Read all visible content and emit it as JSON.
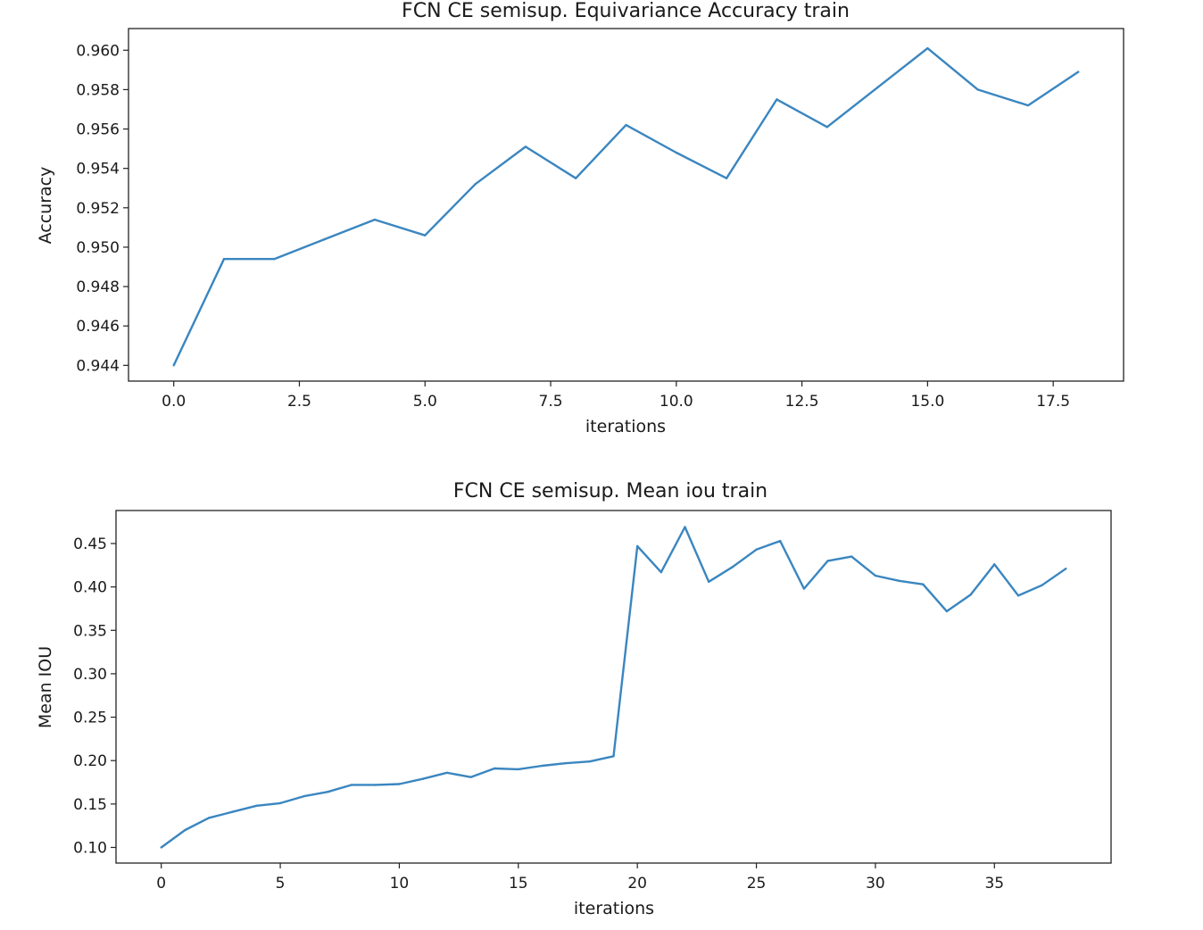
{
  "chart_data": [
    {
      "type": "line",
      "title": "FCN CE semisup. Equivariance Accuracy train",
      "xlabel": "iterations",
      "ylabel": "Accuracy",
      "xlim": [
        -0.9,
        18.9
      ],
      "ylim": [
        0.9432,
        0.9611
      ],
      "xticks": [
        0.0,
        2.5,
        5.0,
        7.5,
        10.0,
        12.5,
        15.0,
        17.5
      ],
      "xtick_labels": [
        "0.0",
        "2.5",
        "5.0",
        "7.5",
        "10.0",
        "12.5",
        "15.0",
        "17.5"
      ],
      "yticks": [
        0.944,
        0.946,
        0.948,
        0.95,
        0.952,
        0.954,
        0.956,
        0.958,
        0.96
      ],
      "ytick_labels": [
        "0.944",
        "0.946",
        "0.948",
        "0.950",
        "0.952",
        "0.954",
        "0.956",
        "0.958",
        "0.960"
      ],
      "grid": false,
      "color": "#3a86c0",
      "series": [
        {
          "x": [
            0,
            1,
            2,
            3,
            4,
            5,
            6,
            7,
            8,
            9,
            10,
            11,
            12,
            13,
            14,
            15,
            16,
            17,
            18
          ],
          "values": [
            0.944,
            0.9494,
            0.9494,
            0.9504,
            0.9514,
            0.9506,
            0.9532,
            0.9551,
            0.9535,
            0.9562,
            0.9548,
            0.9535,
            0.9575,
            0.9561,
            0.9581,
            0.9601,
            0.958,
            0.9572,
            0.9589
          ]
        }
      ]
    },
    {
      "type": "line",
      "title": "FCN CE semisup. Mean iou train",
      "xlabel": "iterations",
      "ylabel": "Mean IOU",
      "xlim": [
        -1.9,
        39.9
      ],
      "ylim": [
        0.082,
        0.488
      ],
      "xticks": [
        0,
        5,
        10,
        15,
        20,
        25,
        30,
        35
      ],
      "xtick_labels": [
        "0",
        "5",
        "10",
        "15",
        "20",
        "25",
        "30",
        "35"
      ],
      "yticks": [
        0.1,
        0.15,
        0.2,
        0.25,
        0.3,
        0.35,
        0.4,
        0.45
      ],
      "ytick_labels": [
        "0.10",
        "0.15",
        "0.20",
        "0.25",
        "0.30",
        "0.35",
        "0.40",
        "0.45"
      ],
      "grid": false,
      "color": "#3a86c0",
      "series": [
        {
          "x": [
            0,
            1,
            2,
            3,
            4,
            5,
            6,
            7,
            8,
            9,
            10,
            11,
            12,
            13,
            14,
            15,
            16,
            17,
            18,
            19,
            20,
            21,
            22,
            23,
            24,
            25,
            26,
            27,
            28,
            29,
            30,
            31,
            32,
            33,
            34,
            35,
            36,
            37,
            38
          ],
          "values": [
            0.1,
            0.12,
            0.134,
            0.141,
            0.148,
            0.151,
            0.159,
            0.164,
            0.172,
            0.172,
            0.173,
            0.179,
            0.186,
            0.181,
            0.191,
            0.19,
            0.194,
            0.197,
            0.199,
            0.205,
            0.447,
            0.417,
            0.469,
            0.406,
            0.423,
            0.443,
            0.453,
            0.398,
            0.43,
            0.435,
            0.413,
            0.407,
            0.403,
            0.372,
            0.391,
            0.426,
            0.39,
            0.402,
            0.421
          ]
        }
      ]
    }
  ]
}
